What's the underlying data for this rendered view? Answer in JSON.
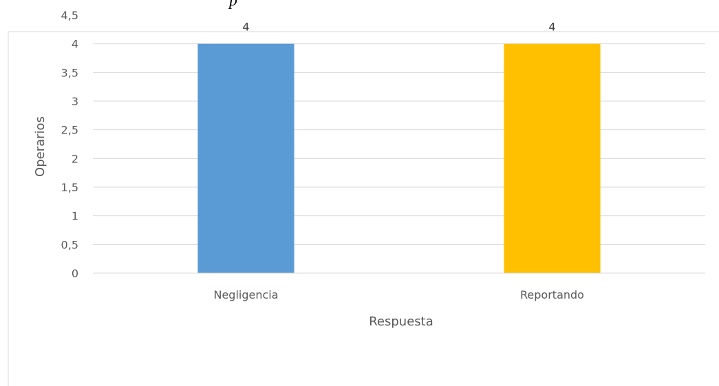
{
  "chart_data": {
    "type": "bar",
    "categories": [
      "Negligencia",
      "Reportando"
    ],
    "series": [
      {
        "values": [
          4,
          4
        ]
      }
    ],
    "data_labels": [
      "4",
      "4"
    ],
    "title_fragment": "p",
    "xlabel": "Respuesta",
    "ylabel": "Operarios",
    "ylim": [
      0,
      4.5
    ],
    "yticks": [
      0,
      0.5,
      1,
      1.5,
      2,
      2.5,
      3,
      3.5,
      4,
      4.5
    ],
    "ytick_labels": [
      "0",
      "0,5",
      "1",
      "1,5",
      "2",
      "2,5",
      "3",
      "3,5",
      "4",
      "4,5"
    ],
    "grid": true,
    "legend": "none",
    "bar_colors": [
      "#5b9bd5",
      "#ffc000"
    ],
    "grid_color": "#d9d9d9",
    "border_color": "#d9d9d9"
  }
}
